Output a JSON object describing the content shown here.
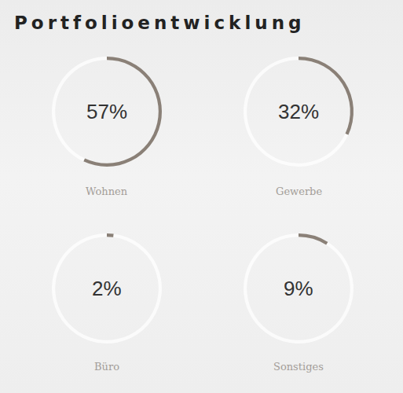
{
  "chart_data": {
    "type": "pie",
    "title": "Portfolioentwicklung",
    "categories": [
      "Wohnen",
      "Gewerbe",
      "Büro",
      "Sonstiges"
    ],
    "values": [
      57,
      32,
      2,
      9
    ],
    "value_labels": [
      "57%",
      "32%",
      "2%",
      "9%"
    ],
    "ylim": [
      0,
      100
    ],
    "color": "#8a8077",
    "data_labels": true
  }
}
